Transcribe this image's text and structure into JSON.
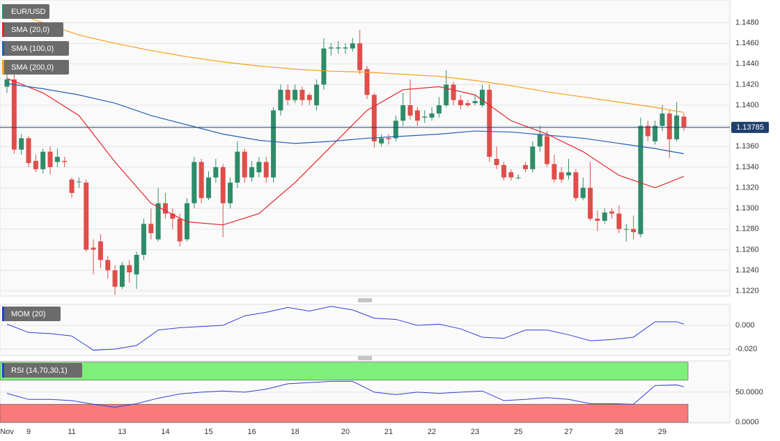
{
  "chart_data": [
    {
      "type": "candlestick",
      "title": "EUR/USD",
      "categories": [
        "Nov",
        null,
        null,
        "9",
        null,
        null,
        null,
        null,
        null,
        "11",
        null,
        null,
        null,
        null,
        null,
        null,
        "13",
        null,
        null,
        null,
        null,
        null,
        "14",
        null,
        null,
        null,
        null,
        null,
        "15",
        null,
        null,
        null,
        null,
        null,
        "16",
        null,
        null,
        null,
        null,
        null,
        "18",
        null,
        null,
        null,
        null,
        null,
        null,
        "20",
        null,
        null,
        null,
        null,
        null,
        "21",
        null,
        null,
        null,
        null,
        null,
        "22",
        null,
        null,
        null,
        null,
        null,
        "23",
        null,
        null,
        null,
        null,
        null,
        "25",
        null,
        null,
        null,
        null,
        null,
        null,
        "27",
        null,
        null,
        null,
        null,
        null,
        null,
        "28",
        null,
        null,
        null,
        null,
        null,
        "29",
        null,
        null,
        null
      ],
      "open": [
        1.1418,
        1.1425,
        1.1357,
        1.1368,
        1.1346,
        1.1338,
        1.1355,
        1.1345,
        1.1346,
        1.1328,
        1.1326,
        1.1325,
        1.1262,
        1.1268,
        1.125,
        1.124,
        1.1224,
        1.1245,
        1.1236,
        1.1255,
        1.1285,
        1.127,
        1.1305,
        1.1295,
        1.129,
        1.127,
        1.1305,
        1.1345,
        1.131,
        1.133,
        1.134,
        1.1305,
        1.1325,
        1.1355,
        1.133,
        1.1335,
        1.1345,
        1.133,
        1.1395,
        1.1415,
        1.1405,
        1.1415,
        1.141,
        1.14,
        1.142,
        1.1455,
        1.1455,
        1.1455,
        1.1455,
        1.146,
        1.1435,
        1.141,
        1.1363,
        1.1368,
        1.1368,
        1.1385,
        1.14,
        1.1395,
        1.1388,
        1.1388,
        1.1392,
        1.14,
        1.142,
        1.1405,
        1.1402,
        1.1402,
        1.14,
        1.1415,
        1.1348,
        1.1342,
        1.1335,
        1.133,
        1.1342,
        1.1338,
        1.136,
        1.137,
        1.1343,
        1.1335,
        1.1332,
        1.1335,
        1.131,
        1.132,
        1.129,
        1.1288,
        1.1297,
        1.1295,
        1.128,
        1.128,
        1.1275,
        1.138,
        1.1365,
        1.138,
        1.1392,
        1.1367,
        1.1389
      ],
      "high": [
        1.1432,
        1.143,
        1.1372,
        1.137,
        1.1352,
        1.1358,
        1.136,
        1.1358,
        1.135,
        1.133,
        1.133,
        1.1328,
        1.127,
        1.1275,
        1.1254,
        1.1245,
        1.1248,
        1.125,
        1.1258,
        1.129,
        1.13,
        1.132,
        1.1315,
        1.13,
        1.1295,
        1.131,
        1.135,
        1.1348,
        1.1336,
        1.1348,
        1.1343,
        1.133,
        1.1365,
        1.1358,
        1.1346,
        1.135,
        1.135,
        1.1398,
        1.142,
        1.142,
        1.142,
        1.1418,
        1.1412,
        1.1425,
        1.1465,
        1.146,
        1.1462,
        1.146,
        1.1465,
        1.1473,
        1.1438,
        1.1412,
        1.1372,
        1.1372,
        1.139,
        1.1412,
        1.1425,
        1.1398,
        1.1395,
        1.1398,
        1.1408,
        1.1434,
        1.1423,
        1.141,
        1.1405,
        1.141,
        1.142,
        1.142,
        1.136,
        1.1345,
        1.1338,
        1.1333,
        1.1345,
        1.1365,
        1.138,
        1.1375,
        1.1352,
        1.134,
        1.1348,
        1.1338,
        1.133,
        1.1345,
        1.1298,
        1.13,
        1.13,
        1.1303,
        1.1285,
        1.1293,
        1.1388,
        1.1385,
        1.1385,
        1.14,
        1.1395,
        1.1403,
        1.1392
      ],
      "low": [
        1.1412,
        1.1353,
        1.1352,
        1.134,
        1.1335,
        1.1334,
        1.1333,
        1.134,
        1.134,
        1.131,
        1.132,
        1.1258,
        1.1236,
        1.1242,
        1.1232,
        1.1216,
        1.1222,
        1.1228,
        1.1222,
        1.125,
        1.127,
        1.1268,
        1.129,
        1.128,
        1.1263,
        1.1268,
        1.13,
        1.1305,
        1.1308,
        1.1325,
        1.1272,
        1.13,
        1.132,
        1.1325,
        1.1326,
        1.133,
        1.1325,
        1.1325,
        1.139,
        1.14,
        1.1402,
        1.14,
        1.14,
        1.1395,
        1.1415,
        1.1448,
        1.145,
        1.145,
        1.1452,
        1.143,
        1.1406,
        1.1359,
        1.136,
        1.1362,
        1.1365,
        1.138,
        1.1386,
        1.138,
        1.1383,
        1.1385,
        1.1388,
        1.1398,
        1.14,
        1.1396,
        1.1398,
        1.14,
        1.1398,
        1.1345,
        1.1338,
        1.1327,
        1.1327,
        1.1328,
        1.1335,
        1.1335,
        1.1355,
        1.134,
        1.1325,
        1.1325,
        1.1328,
        1.1307,
        1.1308,
        1.1288,
        1.1278,
        1.1285,
        1.129,
        1.1276,
        1.1268,
        1.127,
        1.1272,
        1.1365,
        1.1362,
        1.1375,
        1.1349,
        1.1365,
        1.1375
      ],
      "close": [
        1.1425,
        1.1357,
        1.1368,
        1.1344,
        1.1338,
        1.1355,
        1.134,
        1.135,
        1.1345,
        1.1315,
        1.1326,
        1.126,
        1.126,
        1.125,
        1.124,
        1.1224,
        1.1245,
        1.1238,
        1.1255,
        1.1285,
        1.1276,
        1.1305,
        1.1295,
        1.129,
        1.1268,
        1.1305,
        1.1345,
        1.131,
        1.133,
        1.134,
        1.1305,
        1.1325,
        1.1355,
        1.133,
        1.134,
        1.1345,
        1.133,
        1.1395,
        1.1415,
        1.1405,
        1.1415,
        1.1405,
        1.1405,
        1.142,
        1.1455,
        1.1456,
        1.1456,
        1.1456,
        1.146,
        1.1434,
        1.141,
        1.1365,
        1.1368,
        1.1367,
        1.1385,
        1.14,
        1.139,
        1.1385,
        1.1389,
        1.1392,
        1.14,
        1.142,
        1.1405,
        1.14,
        1.14,
        1.1404,
        1.1415,
        1.135,
        1.1342,
        1.133,
        1.133,
        1.133,
        1.1338,
        1.136,
        1.1372,
        1.1343,
        1.1328,
        1.1328,
        1.1335,
        1.131,
        1.132,
        1.129,
        1.1288,
        1.1296,
        1.1295,
        1.128,
        1.128,
        1.1277,
        1.138,
        1.137,
        1.138,
        1.1392,
        1.1367,
        1.139,
        1.1379
      ],
      "up_color": "#2e8c68",
      "down_color": "#df4e4a",
      "ylim": [
        1.1215,
        1.1502
      ],
      "yticks": [
        {
          "value": 1.122,
          "label": "1.1220"
        },
        {
          "value": 1.124,
          "label": "1.1240"
        },
        {
          "value": 1.126,
          "label": "1.1260"
        },
        {
          "value": 1.128,
          "label": "1.1280"
        },
        {
          "value": 1.13,
          "label": "1.1300"
        },
        {
          "value": 1.132,
          "label": "1.1320"
        },
        {
          "value": 1.134,
          "label": "1.1340"
        },
        {
          "value": 1.136,
          "label": "1.1360"
        },
        {
          "value": 1.138,
          "label": "1.1380"
        },
        {
          "value": 1.14,
          "label": "1.1400"
        },
        {
          "value": 1.142,
          "label": "1.1420"
        },
        {
          "value": 1.144,
          "label": "1.1440"
        },
        {
          "value": 1.146,
          "label": "1.1460"
        },
        {
          "value": 1.148,
          "label": "1.1480"
        }
      ],
      "last_price": {
        "value": 1.13785,
        "label": "1.13785"
      },
      "overlays": [
        {
          "name": "SMA (20,0)",
          "color": "#e3242b",
          "x": [
            0,
            5,
            10,
            15,
            20,
            25,
            30,
            35,
            40,
            45,
            50,
            55,
            60,
            65,
            70,
            75,
            80,
            85,
            90,
            94
          ],
          "values": [
            1.1426,
            1.1412,
            1.139,
            1.1345,
            1.1305,
            1.1287,
            1.1284,
            1.1295,
            1.1325,
            1.136,
            1.1395,
            1.1415,
            1.1418,
            1.141,
            1.1385,
            1.1372,
            1.1355,
            1.1332,
            1.132,
            1.1331
          ]
        },
        {
          "name": "SMA (100,0)",
          "color": "#1f5fb4",
          "x": [
            0,
            5,
            10,
            15,
            20,
            25,
            30,
            35,
            40,
            45,
            50,
            55,
            60,
            65,
            70,
            75,
            80,
            85,
            90,
            94
          ],
          "values": [
            1.1421,
            1.1416,
            1.141,
            1.1402,
            1.139,
            1.1381,
            1.1372,
            1.1366,
            1.1363,
            1.1365,
            1.1368,
            1.137,
            1.1372,
            1.1375,
            1.1374,
            1.1371,
            1.1368,
            1.1363,
            1.1358,
            1.1353
          ]
        },
        {
          "name": "SMA (200,0)",
          "color": "#f5a01a",
          "x": [
            0,
            5,
            10,
            15,
            20,
            25,
            30,
            35,
            40,
            45,
            50,
            55,
            60,
            65,
            70,
            75,
            80,
            85,
            90,
            94
          ],
          "values": [
            1.1492,
            1.148,
            1.1468,
            1.146,
            1.1453,
            1.1447,
            1.1442,
            1.1438,
            1.1435,
            1.1433,
            1.1432,
            1.143,
            1.1428,
            1.1424,
            1.1419,
            1.1413,
            1.1408,
            1.1403,
            1.1398,
            1.1393
          ]
        }
      ]
    },
    {
      "type": "line",
      "title": "MOM (20)",
      "color": "#2b3fd6",
      "x": [
        0,
        3,
        6,
        9,
        12,
        15,
        18,
        21,
        24,
        27,
        30,
        33,
        36,
        39,
        42,
        45,
        48,
        51,
        54,
        57,
        60,
        63,
        66,
        69,
        72,
        75,
        78,
        81,
        84,
        87,
        90,
        93,
        94
      ],
      "values": [
        0.001,
        -0.006,
        -0.007,
        -0.009,
        -0.021,
        -0.02,
        -0.017,
        -0.004,
        -0.002,
        -0.001,
        0.0,
        0.008,
        0.011,
        0.015,
        0.012,
        0.016,
        0.013,
        0.006,
        0.005,
        0.0,
        0.001,
        -0.003,
        -0.01,
        -0.011,
        -0.004,
        -0.004,
        -0.008,
        -0.013,
        -0.012,
        -0.01,
        0.003,
        0.003,
        0.001
      ],
      "ylim": [
        -0.0253,
        0.0176
      ],
      "yticks": [
        {
          "value": -0.02,
          "label": "-0.020"
        },
        {
          "value": 0,
          "label": "0.000"
        }
      ]
    },
    {
      "type": "line",
      "title": "RSI (14,70,30,1)",
      "color": "#2b3fd6",
      "x": [
        0,
        3,
        6,
        9,
        12,
        15,
        18,
        21,
        24,
        27,
        30,
        33,
        36,
        39,
        42,
        45,
        48,
        51,
        54,
        57,
        60,
        63,
        66,
        69,
        72,
        75,
        78,
        81,
        84,
        87,
        90,
        93,
        94
      ],
      "values": [
        48,
        38,
        38,
        36,
        30,
        25,
        31,
        40,
        47,
        50,
        52,
        50,
        55,
        64,
        66,
        68,
        68,
        50,
        46,
        50,
        48,
        50,
        52,
        36,
        38,
        41,
        38,
        31,
        31,
        30,
        61,
        62,
        59
      ],
      "ylim": [
        -1,
        102
      ],
      "yticks": [
        {
          "value": 0,
          "label": "0.0000"
        },
        {
          "value": 50,
          "label": "50.0000"
        }
      ],
      "bands": [
        {
          "from": 70,
          "to": 100,
          "color": "#7ef07a"
        },
        {
          "from": 0,
          "to": 30,
          "color": "#f87a7a"
        }
      ]
    }
  ]
}
